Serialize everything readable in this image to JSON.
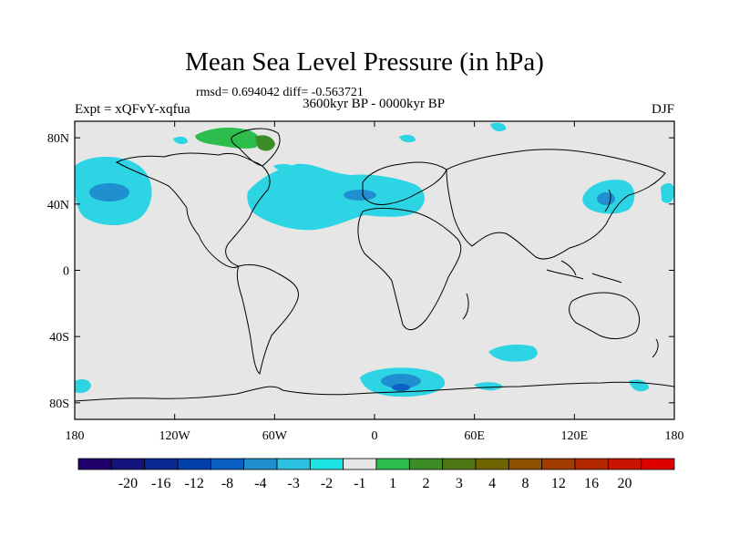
{
  "title": "Mean Sea Level Pressure (in hPa)",
  "stats": "rmsd= 0.694042 diff= -0.563721",
  "subtitle": "3600kyr BP - 0000kyr BP",
  "experiment": "Expt = xQFvY-xqfua",
  "season": "DJF",
  "map": {
    "lon_range": [
      -180,
      180
    ],
    "lat_range": [
      -90,
      90
    ],
    "lat_ticks": [
      {
        "value": 80,
        "label": "80N"
      },
      {
        "value": 40,
        "label": "40N"
      },
      {
        "value": 0,
        "label": "0"
      },
      {
        "value": -40,
        "label": "40S"
      },
      {
        "value": -80,
        "label": "80S"
      }
    ],
    "lon_ticks": [
      {
        "value": -180,
        "label": "180"
      },
      {
        "value": -120,
        "label": "120W"
      },
      {
        "value": -60,
        "label": "60W"
      },
      {
        "value": 0,
        "label": "0"
      },
      {
        "value": 60,
        "label": "60E"
      },
      {
        "value": 120,
        "label": "120E"
      },
      {
        "value": 180,
        "label": "180"
      }
    ],
    "background_color": "#e6e6e6"
  },
  "colorbar": {
    "colors": [
      "#20006a",
      "#14147d",
      "#0a2891",
      "#0040a8",
      "#0a60c0",
      "#1f8fd0",
      "#2cc0e0",
      "#1ee4e4",
      "#e6e6e6",
      "#2dbd4c",
      "#3c8c28",
      "#4f7815",
      "#706400",
      "#8c5000",
      "#a03c00",
      "#b42800",
      "#c81400",
      "#dc0000"
    ],
    "labels": [
      "-20",
      "-16",
      "-12",
      "-8",
      "-4",
      "-3",
      "-2",
      "-1",
      "1",
      "2",
      "3",
      "4",
      "8",
      "12",
      "16",
      "20"
    ]
  }
}
